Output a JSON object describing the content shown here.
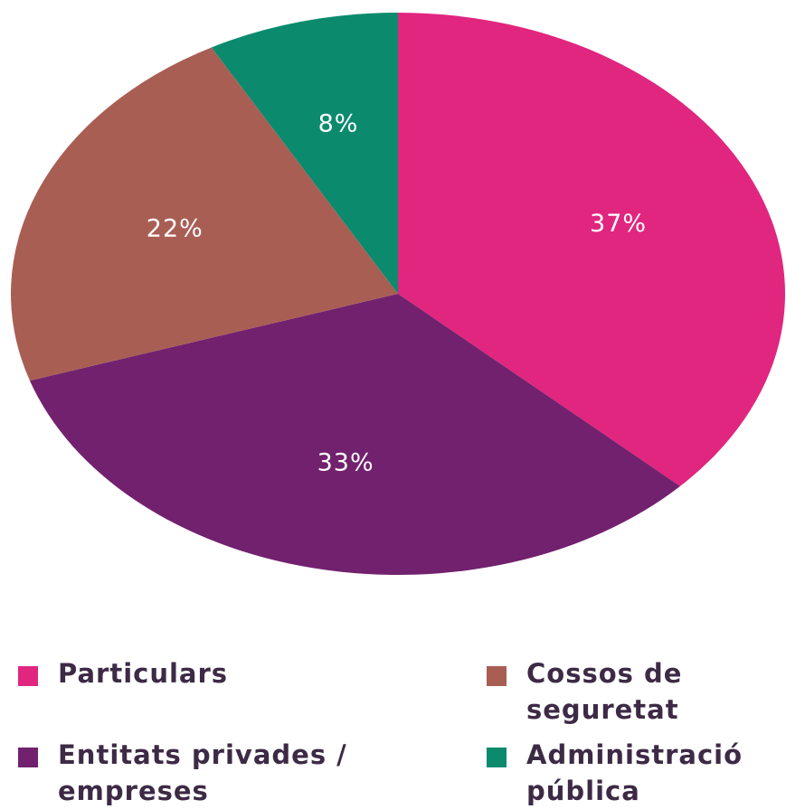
{
  "chart_data": {
    "type": "pie",
    "categories": [
      "Particulars",
      "Entitats privades / empreses",
      "Cossos de seguretat",
      "Administració pública"
    ],
    "values": [
      37,
      33,
      22,
      8
    ],
    "value_labels": [
      "37%",
      "33%",
      "22%",
      "8%"
    ],
    "colors": [
      "#e0267f",
      "#72216e",
      "#a95e54",
      "#0b8a6e"
    ],
    "legend": "bottom"
  }
}
